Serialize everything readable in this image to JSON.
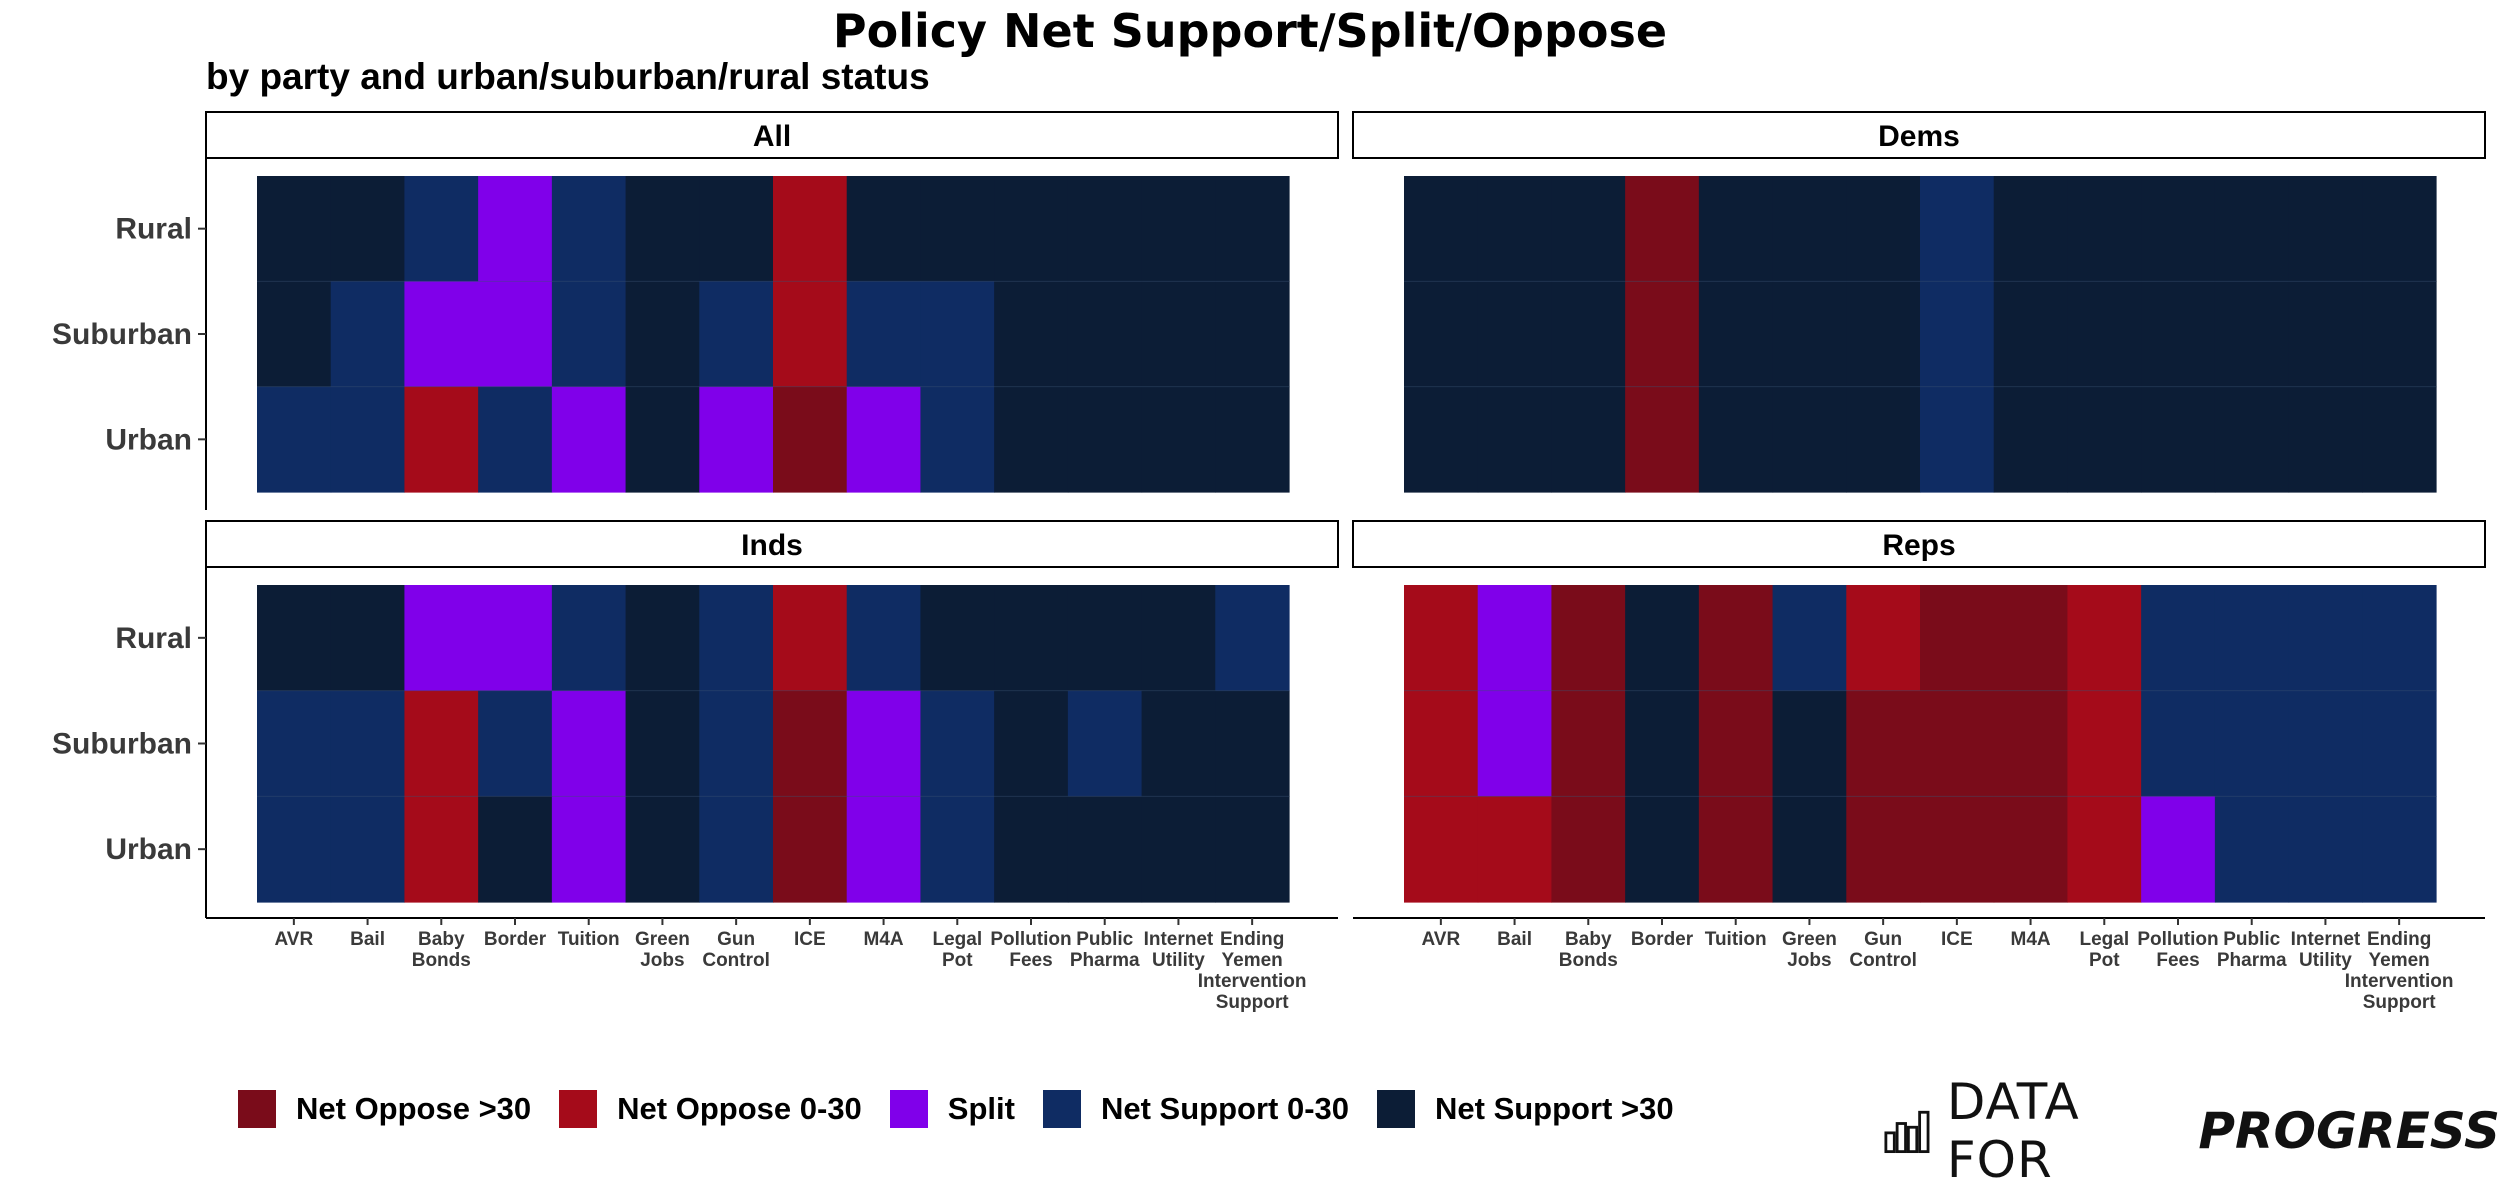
{
  "title": "Policy Net Support/Split/Oppose",
  "subtitle": "by party and urban/suburban/rural status",
  "colors": {
    "Net Oppose >30": "#7a0c1a",
    "Net Oppose 0-30": "#a50b1a",
    "Split": "#8000ea",
    "Net Support 0-30": "#0f2c63",
    "Net Support >30": "#0c1d36"
  },
  "legend": {
    "items": [
      "Net Oppose >30",
      "Net Oppose 0-30",
      "Split",
      "Net Support 0-30",
      "Net Support >30"
    ]
  },
  "logo": {
    "text_a": "DATA FOR",
    "text_b": "PROGRESS"
  },
  "chart_data": {
    "type": "heatmap",
    "title": "Policy Net Support/Split/Oppose",
    "subtitle": "by party and urban/suburban/rural status",
    "x_categories": [
      "AVR",
      "Bail",
      "Baby Bonds",
      "Border",
      "Tuition",
      "Green Jobs",
      "Gun Control",
      "ICE",
      "M4A",
      "Legal Pot",
      "Pollution Fees",
      "Public Pharma",
      "Internet Utility",
      "Ending Yemen Intervention Support"
    ],
    "y_categories": [
      "Rural",
      "Suburban",
      "Urban"
    ],
    "legend_position": "bottom",
    "panels": [
      {
        "name": "All",
        "rows": {
          "Rural": [
            "Net Support >30",
            "Net Support >30",
            "Net Support 0-30",
            "Split",
            "Net Support 0-30",
            "Net Support >30",
            "Net Support >30",
            "Net Oppose 0-30",
            "Net Support >30",
            "Net Support >30",
            "Net Support >30",
            "Net Support >30",
            "Net Support >30",
            "Net Support >30"
          ],
          "Suburban": [
            "Net Support >30",
            "Net Support 0-30",
            "Split",
            "Split",
            "Net Support 0-30",
            "Net Support >30",
            "Net Support 0-30",
            "Net Oppose 0-30",
            "Net Support 0-30",
            "Net Support 0-30",
            "Net Support >30",
            "Net Support >30",
            "Net Support >30",
            "Net Support >30"
          ],
          "Urban": [
            "Net Support 0-30",
            "Net Support 0-30",
            "Net Oppose 0-30",
            "Net Support 0-30",
            "Split",
            "Net Support >30",
            "Split",
            "Net Oppose >30",
            "Split",
            "Net Support 0-30",
            "Net Support >30",
            "Net Support >30",
            "Net Support >30",
            "Net Support >30"
          ]
        }
      },
      {
        "name": "Dems",
        "rows": {
          "Rural": [
            "Net Support >30",
            "Net Support >30",
            "Net Support >30",
            "Net Oppose >30",
            "Net Support >30",
            "Net Support >30",
            "Net Support >30",
            "Net Support 0-30",
            "Net Support >30",
            "Net Support >30",
            "Net Support >30",
            "Net Support >30",
            "Net Support >30",
            "Net Support >30"
          ],
          "Suburban": [
            "Net Support >30",
            "Net Support >30",
            "Net Support >30",
            "Net Oppose >30",
            "Net Support >30",
            "Net Support >30",
            "Net Support >30",
            "Net Support 0-30",
            "Net Support >30",
            "Net Support >30",
            "Net Support >30",
            "Net Support >30",
            "Net Support >30",
            "Net Support >30"
          ],
          "Urban": [
            "Net Support >30",
            "Net Support >30",
            "Net Support >30",
            "Net Oppose >30",
            "Net Support >30",
            "Net Support >30",
            "Net Support >30",
            "Net Support 0-30",
            "Net Support >30",
            "Net Support >30",
            "Net Support >30",
            "Net Support >30",
            "Net Support >30",
            "Net Support >30"
          ]
        }
      },
      {
        "name": "Inds",
        "rows": {
          "Rural": [
            "Net Support >30",
            "Net Support >30",
            "Split",
            "Split",
            "Net Support 0-30",
            "Net Support >30",
            "Net Support 0-30",
            "Net Oppose 0-30",
            "Net Support 0-30",
            "Net Support >30",
            "Net Support >30",
            "Net Support >30",
            "Net Support >30",
            "Net Support 0-30"
          ],
          "Suburban": [
            "Net Support 0-30",
            "Net Support 0-30",
            "Net Oppose 0-30",
            "Net Support 0-30",
            "Split",
            "Net Support >30",
            "Net Support 0-30",
            "Net Oppose >30",
            "Split",
            "Net Support 0-30",
            "Net Support >30",
            "Net Support 0-30",
            "Net Support >30",
            "Net Support >30"
          ],
          "Urban": [
            "Net Support 0-30",
            "Net Support 0-30",
            "Net Oppose 0-30",
            "Net Support >30",
            "Split",
            "Net Support >30",
            "Net Support 0-30",
            "Net Oppose >30",
            "Split",
            "Net Support 0-30",
            "Net Support >30",
            "Net Support >30",
            "Net Support >30",
            "Net Support >30"
          ]
        }
      },
      {
        "name": "Reps",
        "rows": {
          "Rural": [
            "Net Oppose 0-30",
            "Split",
            "Net Oppose >30",
            "Net Support >30",
            "Net Oppose >30",
            "Net Support 0-30",
            "Net Oppose 0-30",
            "Net Oppose >30",
            "Net Oppose >30",
            "Net Oppose 0-30",
            "Net Support 0-30",
            "Net Support 0-30",
            "Net Support 0-30",
            "Net Support 0-30"
          ],
          "Suburban": [
            "Net Oppose 0-30",
            "Split",
            "Net Oppose >30",
            "Net Support >30",
            "Net Oppose >30",
            "Net Support >30",
            "Net Oppose >30",
            "Net Oppose >30",
            "Net Oppose >30",
            "Net Oppose 0-30",
            "Net Support 0-30",
            "Net Support 0-30",
            "Net Support 0-30",
            "Net Support 0-30"
          ],
          "Urban": [
            "Net Oppose 0-30",
            "Net Oppose 0-30",
            "Net Oppose >30",
            "Net Support >30",
            "Net Oppose >30",
            "Net Support >30",
            "Net Oppose >30",
            "Net Oppose >30",
            "Net Oppose >30",
            "Net Oppose 0-30",
            "Split",
            "Net Support 0-30",
            "Net Support 0-30",
            "Net Support 0-30"
          ]
        }
      }
    ]
  }
}
